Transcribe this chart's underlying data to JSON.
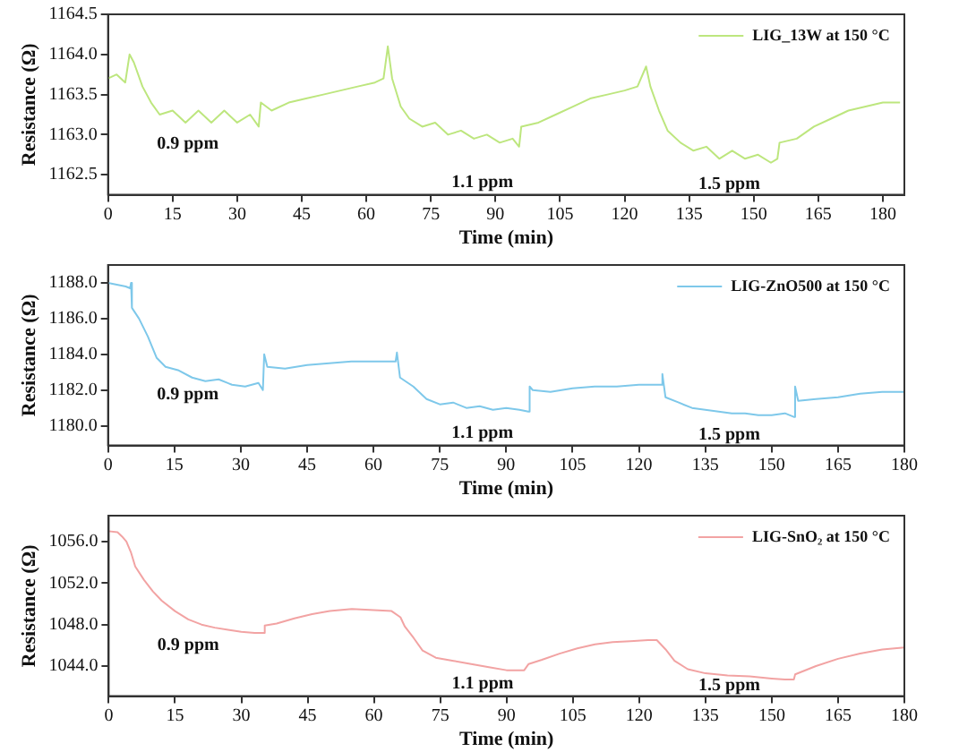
{
  "chart_data": [
    {
      "type": "line",
      "xlabel": "Time (min)",
      "ylabel": "Resistance (Ω)",
      "xlim": [
        0,
        185
      ],
      "xticks": [
        0,
        15,
        30,
        45,
        60,
        75,
        90,
        105,
        120,
        135,
        150,
        165,
        180
      ],
      "ylim": [
        1162.25,
        1164.5
      ],
      "yticks": [
        {
          "value": 1162.5,
          "label": "1162.5"
        },
        {
          "value": 1163,
          "label": "1163.0"
        },
        {
          "value": 1163.5,
          "label": "1163.5"
        },
        {
          "value": 1164,
          "label": "1164.0"
        },
        {
          "value": 1164.5,
          "label": "1164.5"
        }
      ],
      "grid": false,
      "legend": "top right",
      "marker": "none",
      "line_style": "solid",
      "series": [
        {
          "name": "LIG_13W at 150 °C",
          "color": "#bde67e",
          "x": [
            0,
            2,
            4,
            5,
            6,
            8,
            10,
            12,
            15,
            18,
            21,
            24,
            27,
            30,
            33,
            35,
            35.5,
            38,
            42,
            46,
            50,
            54,
            58,
            62,
            64,
            65,
            66,
            68,
            70,
            73,
            76,
            79,
            82,
            85,
            88,
            91,
            94,
            95.5,
            96,
            100,
            104,
            108,
            112,
            116,
            120,
            123,
            125,
            126,
            128,
            130,
            133,
            136,
            139,
            142,
            145,
            148,
            151,
            154,
            155.5,
            156,
            160,
            164,
            168,
            172,
            176,
            180,
            184
          ],
          "values": [
            1163.7,
            1163.75,
            1163.65,
            1164.0,
            1163.9,
            1163.6,
            1163.4,
            1163.25,
            1163.3,
            1163.15,
            1163.3,
            1163.15,
            1163.3,
            1163.15,
            1163.25,
            1163.1,
            1163.4,
            1163.3,
            1163.4,
            1163.45,
            1163.5,
            1163.55,
            1163.6,
            1163.65,
            1163.7,
            1164.1,
            1163.7,
            1163.35,
            1163.2,
            1163.1,
            1163.15,
            1163.0,
            1163.05,
            1162.95,
            1163.0,
            1162.9,
            1162.95,
            1162.85,
            1163.1,
            1163.15,
            1163.25,
            1163.35,
            1163.45,
            1163.5,
            1163.55,
            1163.6,
            1163.85,
            1163.6,
            1163.3,
            1163.05,
            1162.9,
            1162.8,
            1162.85,
            1162.7,
            1162.8,
            1162.7,
            1162.75,
            1162.65,
            1162.7,
            1162.9,
            1162.95,
            1163.1,
            1163.2,
            1163.3,
            1163.35,
            1163.4,
            1163.4
          ]
        }
      ],
      "annotations": [
        "0.9 ppm",
        "1.1 ppm",
        "1.5 ppm"
      ]
    },
    {
      "type": "line",
      "xlabel": "Time (min)",
      "ylabel": "Resistance (Ω)",
      "xlim": [
        0,
        180
      ],
      "xticks": [
        0,
        15,
        30,
        45,
        60,
        75,
        90,
        105,
        120,
        135,
        150,
        165,
        180
      ],
      "ylim": [
        1178.9,
        1189
      ],
      "yticks": [
        {
          "value": 1180,
          "label": "1180.0"
        },
        {
          "value": 1182,
          "label": "1182.0"
        },
        {
          "value": 1184,
          "label": "1184.0"
        },
        {
          "value": 1186,
          "label": "1186.0"
        },
        {
          "value": 1188,
          "label": "1188.0"
        }
      ],
      "grid": false,
      "legend": "top right",
      "marker": "none",
      "line_style": "solid",
      "series": [
        {
          "name": "LIG-ZnO500 at 150 °C",
          "color": "#7ec8ea",
          "x": [
            0,
            4,
            5,
            5.2,
            5.4,
            7,
            9,
            11,
            13,
            16,
            19,
            22,
            25,
            28,
            31,
            34,
            35,
            35.3,
            36,
            40,
            45,
            50,
            55,
            60,
            65,
            65.3,
            66,
            69,
            72,
            75,
            78,
            81,
            84,
            87,
            90,
            93,
            95,
            95.3,
            96,
            100,
            105,
            110,
            115,
            120,
            125,
            125.3,
            126,
            129,
            132,
            135,
            138,
            141,
            144,
            147,
            150,
            153,
            155,
            155.3,
            156,
            160,
            165,
            170,
            175,
            180
          ],
          "values": [
            1188.0,
            1187.8,
            1187.7,
            1188.0,
            1186.6,
            1186.0,
            1185.0,
            1183.8,
            1183.3,
            1183.1,
            1182.7,
            1182.5,
            1182.6,
            1182.3,
            1182.2,
            1182.4,
            1182.0,
            1184.0,
            1183.3,
            1183.2,
            1183.4,
            1183.5,
            1183.6,
            1183.6,
            1183.6,
            1184.1,
            1182.7,
            1182.2,
            1181.5,
            1181.2,
            1181.3,
            1181.0,
            1181.1,
            1180.9,
            1181.0,
            1180.9,
            1180.8,
            1182.2,
            1182.0,
            1181.9,
            1182.1,
            1182.2,
            1182.2,
            1182.3,
            1182.3,
            1182.9,
            1181.6,
            1181.3,
            1181.0,
            1180.9,
            1180.8,
            1180.7,
            1180.7,
            1180.6,
            1180.6,
            1180.7,
            1180.5,
            1182.2,
            1181.4,
            1181.5,
            1181.6,
            1181.8,
            1181.9,
            1181.9
          ]
        }
      ],
      "annotations": [
        "0.9 ppm",
        "1.1 ppm",
        "1.5 ppm"
      ]
    },
    {
      "type": "line",
      "xlabel": "Time (min)",
      "ylabel": "Resistance (Ω)",
      "xlim": [
        0,
        180
      ],
      "xticks": [
        0,
        15,
        30,
        45,
        60,
        75,
        90,
        105,
        120,
        135,
        150,
        165,
        180
      ],
      "ylim": [
        1041.1,
        1058.5
      ],
      "yticks": [
        {
          "value": 1044,
          "label": "1044.0"
        },
        {
          "value": 1048,
          "label": "1048.0"
        },
        {
          "value": 1052,
          "label": "1052.0"
        },
        {
          "value": 1056,
          "label": "1056.0"
        }
      ],
      "grid": false,
      "legend": "top right",
      "marker": "none",
      "line_style": "solid",
      "series": [
        {
          "name": "LIG-SnO₂ at 150 °C",
          "color": "#f2a3a3",
          "x": [
            0,
            2,
            3,
            4,
            5,
            6,
            8,
            10,
            12,
            15,
            18,
            21,
            24,
            27,
            30,
            33,
            35,
            35.3,
            38,
            42,
            46,
            50,
            55,
            60,
            64,
            66,
            67,
            69,
            71,
            74,
            78,
            82,
            86,
            90,
            94,
            95,
            98,
            102,
            106,
            110,
            114,
            118,
            122,
            124,
            126,
            128,
            131,
            135,
            140,
            145,
            150,
            153,
            155,
            155.3,
            160,
            165,
            170,
            175,
            180
          ],
          "values": [
            1057.0,
            1056.9,
            1056.5,
            1056.0,
            1055.0,
            1053.6,
            1052.3,
            1051.2,
            1050.3,
            1049.3,
            1048.5,
            1048.0,
            1047.7,
            1047.5,
            1047.3,
            1047.2,
            1047.2,
            1047.9,
            1048.1,
            1048.6,
            1049.0,
            1049.3,
            1049.5,
            1049.4,
            1049.3,
            1048.7,
            1047.8,
            1046.7,
            1045.5,
            1044.8,
            1044.5,
            1044.2,
            1043.9,
            1043.6,
            1043.6,
            1044.2,
            1044.6,
            1045.2,
            1045.7,
            1046.1,
            1046.3,
            1046.4,
            1046.5,
            1046.5,
            1045.6,
            1044.5,
            1043.7,
            1043.3,
            1043.1,
            1043.0,
            1042.8,
            1042.7,
            1042.7,
            1043.2,
            1044.0,
            1044.7,
            1045.2,
            1045.6,
            1045.8
          ]
        }
      ],
      "annotations": [
        "0.9 ppm",
        "1.1 ppm",
        "1.5 ppm"
      ]
    }
  ]
}
